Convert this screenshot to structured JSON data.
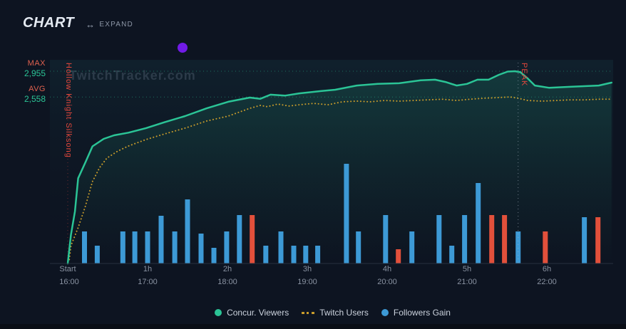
{
  "header": {
    "title": "CHART",
    "expand": {
      "icon": "↔",
      "label": "EXPAND"
    }
  },
  "watermark": "TwitchTracker.com",
  "y_axis": {
    "max_label": "MAX",
    "max_value": "2,955",
    "avg_label": "AVG",
    "avg_value": "2,558"
  },
  "annotations": {
    "game_marker": "Hollow Knight Silksong",
    "peak_marker": "PEAK"
  },
  "x_axis": {
    "hours": [
      "Start",
      "1h",
      "2h",
      "3h",
      "4h",
      "5h",
      "6h"
    ],
    "times": [
      "16:00",
      "17:00",
      "18:00",
      "19:00",
      "20:00",
      "21:00",
      "22:00"
    ]
  },
  "legend": [
    {
      "label": "Concur. Viewers"
    },
    {
      "label": "Twitch Users"
    },
    {
      "label": "Followers Gain"
    }
  ],
  "colors": {
    "background": "#0d1421",
    "viewers_line": "#2bc496",
    "users_line": "#c79b2b",
    "bars_blue": "#3d9ad6",
    "bars_red": "#e2503b",
    "marker_red": "#e0473c",
    "grid_teal": "#2bc496",
    "peak_line_gray": "#aab3c2",
    "purple_dot": "#711be6"
  },
  "chart_data": {
    "type": "line+bar",
    "x_unit": "hours from stream start",
    "x_max_h": 6.85,
    "max_viewers": 2955,
    "avg_viewers": 2558,
    "peak_time_h": 5.64,
    "game_start_h": 0,
    "bar_value_unit": "relative height (no numeric axis shown)",
    "series": [
      {
        "name": "Concur. Viewers",
        "type": "line",
        "color": "#2bc496",
        "points": [
          [
            0,
            0
          ],
          [
            0.04,
            440
          ],
          [
            0.09,
            800
          ],
          [
            0.13,
            1310
          ],
          [
            0.22,
            1550
          ],
          [
            0.31,
            1800
          ],
          [
            0.45,
            1915
          ],
          [
            0.58,
            1970
          ],
          [
            0.76,
            2010
          ],
          [
            0.98,
            2080
          ],
          [
            1.21,
            2170
          ],
          [
            1.47,
            2265
          ],
          [
            1.74,
            2385
          ],
          [
            2.01,
            2485
          ],
          [
            2.28,
            2550
          ],
          [
            2.41,
            2530
          ],
          [
            2.54,
            2595
          ],
          [
            2.72,
            2580
          ],
          [
            2.9,
            2615
          ],
          [
            3.17,
            2650
          ],
          [
            3.35,
            2670
          ],
          [
            3.62,
            2735
          ],
          [
            3.88,
            2760
          ],
          [
            4.15,
            2770
          ],
          [
            4.42,
            2815
          ],
          [
            4.6,
            2825
          ],
          [
            4.73,
            2790
          ],
          [
            4.87,
            2735
          ],
          [
            5.0,
            2760
          ],
          [
            5.13,
            2825
          ],
          [
            5.27,
            2825
          ],
          [
            5.4,
            2900
          ],
          [
            5.51,
            2950
          ],
          [
            5.6,
            2955
          ],
          [
            5.67,
            2940
          ],
          [
            5.76,
            2845
          ],
          [
            5.85,
            2735
          ],
          [
            6.03,
            2700
          ],
          [
            6.29,
            2715
          ],
          [
            6.47,
            2725
          ],
          [
            6.65,
            2735
          ],
          [
            6.81,
            2780
          ]
        ]
      },
      {
        "name": "Twitch Users",
        "type": "dotted-line",
        "color": "#c79b2b",
        "points": [
          [
            0.02,
            60
          ],
          [
            0.04,
            275
          ],
          [
            0.13,
            550
          ],
          [
            0.22,
            875
          ],
          [
            0.31,
            1260
          ],
          [
            0.4,
            1475
          ],
          [
            0.49,
            1620
          ],
          [
            0.63,
            1730
          ],
          [
            0.76,
            1805
          ],
          [
            0.98,
            1905
          ],
          [
            1.21,
            1990
          ],
          [
            1.47,
            2080
          ],
          [
            1.74,
            2190
          ],
          [
            2.01,
            2265
          ],
          [
            2.28,
            2385
          ],
          [
            2.41,
            2430
          ],
          [
            2.5,
            2410
          ],
          [
            2.63,
            2450
          ],
          [
            2.77,
            2420
          ],
          [
            2.9,
            2440
          ],
          [
            3.08,
            2460
          ],
          [
            3.26,
            2440
          ],
          [
            3.44,
            2485
          ],
          [
            3.62,
            2495
          ],
          [
            3.79,
            2485
          ],
          [
            3.97,
            2505
          ],
          [
            4.15,
            2495
          ],
          [
            4.33,
            2505
          ],
          [
            4.51,
            2515
          ],
          [
            4.69,
            2525
          ],
          [
            4.87,
            2505
          ],
          [
            5.04,
            2525
          ],
          [
            5.22,
            2540
          ],
          [
            5.4,
            2550
          ],
          [
            5.54,
            2560
          ],
          [
            5.64,
            2540
          ],
          [
            5.76,
            2505
          ],
          [
            5.94,
            2495
          ],
          [
            6.12,
            2505
          ],
          [
            6.29,
            2515
          ],
          [
            6.47,
            2515
          ],
          [
            6.65,
            2525
          ],
          [
            6.81,
            2525
          ]
        ]
      },
      {
        "name": "Followers Gain",
        "type": "bar",
        "color": "#3d9ad6",
        "alt_color": "#e2503b",
        "bars": [
          {
            "t": 0.21,
            "v": 45,
            "c": "blue"
          },
          {
            "t": 0.37,
            "v": 25,
            "c": "blue"
          },
          {
            "t": 0.69,
            "v": 45,
            "c": "blue"
          },
          {
            "t": 0.84,
            "v": 45,
            "c": "blue"
          },
          {
            "t": 1.0,
            "v": 45,
            "c": "blue"
          },
          {
            "t": 1.17,
            "v": 67,
            "c": "blue"
          },
          {
            "t": 1.34,
            "v": 45,
            "c": "blue"
          },
          {
            "t": 1.5,
            "v": 90,
            "c": "blue"
          },
          {
            "t": 1.67,
            "v": 42,
            "c": "blue"
          },
          {
            "t": 1.83,
            "v": 22,
            "c": "blue"
          },
          {
            "t": 1.99,
            "v": 45,
            "c": "blue"
          },
          {
            "t": 2.15,
            "v": 68,
            "c": "blue"
          },
          {
            "t": 2.31,
            "v": 68,
            "c": "red"
          },
          {
            "t": 2.48,
            "v": 25,
            "c": "blue"
          },
          {
            "t": 2.67,
            "v": 45,
            "c": "blue"
          },
          {
            "t": 2.83,
            "v": 25,
            "c": "blue"
          },
          {
            "t": 2.98,
            "v": 25,
            "c": "blue"
          },
          {
            "t": 3.13,
            "v": 25,
            "c": "blue"
          },
          {
            "t": 3.49,
            "v": 140,
            "c": "blue"
          },
          {
            "t": 3.64,
            "v": 45,
            "c": "blue"
          },
          {
            "t": 3.98,
            "v": 68,
            "c": "blue"
          },
          {
            "t": 4.14,
            "v": 20,
            "c": "red"
          },
          {
            "t": 4.31,
            "v": 45,
            "c": "blue"
          },
          {
            "t": 4.65,
            "v": 68,
            "c": "blue"
          },
          {
            "t": 4.81,
            "v": 25,
            "c": "blue"
          },
          {
            "t": 4.97,
            "v": 68,
            "c": "blue"
          },
          {
            "t": 5.14,
            "v": 113,
            "c": "blue"
          },
          {
            "t": 5.31,
            "v": 68,
            "c": "red"
          },
          {
            "t": 5.47,
            "v": 68,
            "c": "red"
          },
          {
            "t": 5.64,
            "v": 45,
            "c": "blue"
          },
          {
            "t": 5.98,
            "v": 45,
            "c": "red"
          },
          {
            "t": 6.47,
            "v": 65,
            "c": "blue"
          },
          {
            "t": 6.64,
            "v": 65,
            "c": "red"
          }
        ]
      }
    ]
  }
}
